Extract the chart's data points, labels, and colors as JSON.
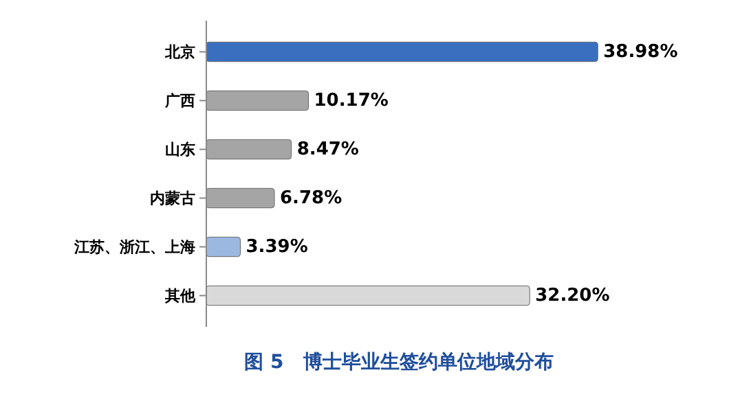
{
  "chart_data": {
    "type": "bar",
    "orientation": "horizontal",
    "title": "图 5　博士毕业生签约单位地域分布",
    "categories": [
      "北京",
      "广西",
      "山东",
      "内蒙古",
      "江苏、浙江、上海",
      "其他"
    ],
    "values": [
      38.98,
      10.17,
      8.47,
      6.78,
      3.39,
      32.2
    ],
    "colors": [
      "#3a6fc0",
      "#a5a5a5",
      "#a5a5a5",
      "#a5a5a5",
      "#9bb8e0",
      "#d9d9d9"
    ],
    "value_labels": [
      "38.98%",
      "10.17%",
      "8.47%",
      "6.78%",
      "3.39%",
      "32.20%"
    ]
  }
}
